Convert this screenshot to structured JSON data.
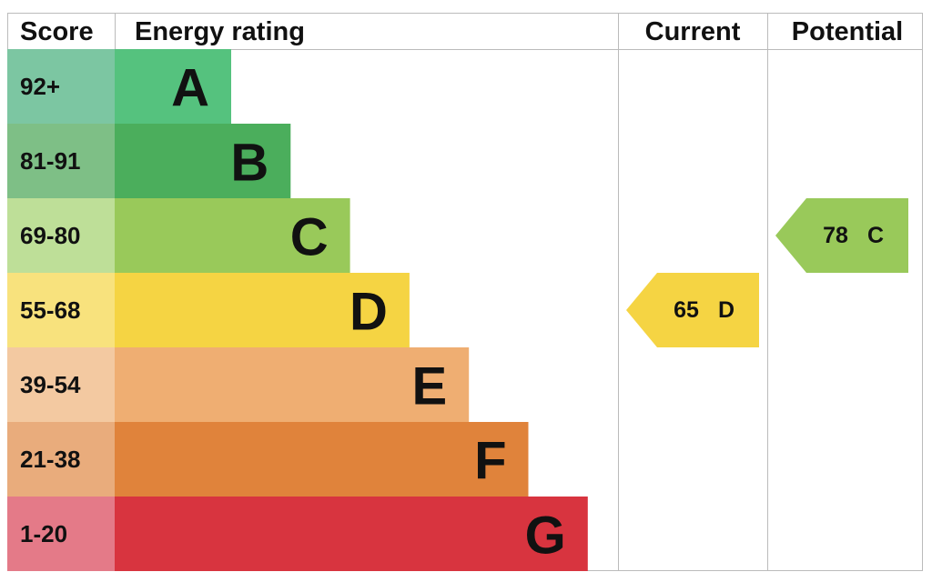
{
  "header": {
    "score": "Score",
    "rating": "Energy rating",
    "current": "Current",
    "potential": "Potential"
  },
  "rows": [
    {
      "score": "92+",
      "letter": "A",
      "color": "#55c27e",
      "score_color": "#7cc6a2"
    },
    {
      "score": "81-91",
      "letter": "B",
      "color": "#4bae5c",
      "score_color": "#7ebf86"
    },
    {
      "score": "69-80",
      "letter": "C",
      "color": "#99c95a",
      "score_color": "#bedf98"
    },
    {
      "score": "55-68",
      "letter": "D",
      "color": "#f5d443",
      "score_color": "#f8e27d"
    },
    {
      "score": "39-54",
      "letter": "E",
      "color": "#efae72",
      "score_color": "#f3c9a1"
    },
    {
      "score": "21-38",
      "letter": "F",
      "color": "#e0833b",
      "score_color": "#e9ac7c"
    },
    {
      "score": "1-20",
      "letter": "G",
      "color": "#d8343f",
      "score_color": "#e47a88"
    }
  ],
  "current": {
    "value": "65",
    "band": "D"
  },
  "potential": {
    "value": "78",
    "band": "C"
  }
}
